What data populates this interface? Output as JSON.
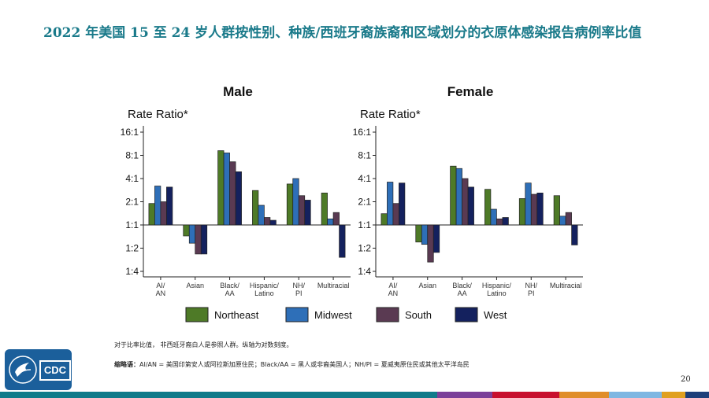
{
  "title": "2022 年美国 15 至 24 岁人群按性别、种族/西班牙裔族裔和区域划分的衣原体感染报告病例率比值",
  "chart_data": [
    {
      "type": "bar",
      "title": "Male",
      "ylabel": "Rate Ratio*",
      "y_scale": "log2",
      "yticks": [
        {
          "value": 16,
          "label": "16:1"
        },
        {
          "value": 8,
          "label": "8:1"
        },
        {
          "value": 4,
          "label": "4:1"
        },
        {
          "value": 2,
          "label": "2:1"
        },
        {
          "value": 1,
          "label": "1:1"
        },
        {
          "value": 0.5,
          "label": "1:2"
        },
        {
          "value": 0.25,
          "label": "1:4"
        }
      ],
      "ylim": [
        0.22,
        18
      ],
      "baseline": 1,
      "categories": [
        "AI/ AN",
        "Asian",
        "Black/ AA",
        "Hispanic/ Latino",
        "NH/ PI",
        "Multiracial"
      ],
      "series": [
        {
          "name": "Northeast",
          "color": "#4e7a27",
          "values": [
            1.9,
            0.72,
            9.2,
            2.8,
            3.4,
            2.6
          ]
        },
        {
          "name": "Midwest",
          "color": "#2e6fb8",
          "values": [
            3.2,
            0.58,
            8.6,
            1.8,
            4.0,
            1.2
          ]
        },
        {
          "name": "South",
          "color": "#5a3a52",
          "values": [
            2.0,
            0.42,
            6.6,
            1.25,
            2.4,
            1.45
          ]
        },
        {
          "name": "West",
          "color": "#14215e",
          "values": [
            3.1,
            0.42,
            4.9,
            1.15,
            2.1,
            0.38
          ]
        }
      ]
    },
    {
      "type": "bar",
      "title": "Female",
      "ylabel": "Rate Ratio*",
      "y_scale": "log2",
      "yticks": [
        {
          "value": 16,
          "label": "16:1"
        },
        {
          "value": 8,
          "label": "8:1"
        },
        {
          "value": 4,
          "label": "4:1"
        },
        {
          "value": 2,
          "label": "2:1"
        },
        {
          "value": 1,
          "label": "1:1"
        },
        {
          "value": 0.5,
          "label": "1:2"
        },
        {
          "value": 0.25,
          "label": "1:4"
        }
      ],
      "ylim": [
        0.22,
        18
      ],
      "baseline": 1,
      "categories": [
        "AI/ AN",
        "Asian",
        "Black/ AA",
        "Hispanic/ Latino",
        "NH/ PI",
        "Multiracial"
      ],
      "series": [
        {
          "name": "Northeast",
          "color": "#4e7a27",
          "values": [
            1.4,
            0.6,
            5.8,
            2.9,
            2.2,
            2.4
          ]
        },
        {
          "name": "Midwest",
          "color": "#2e6fb8",
          "values": [
            3.6,
            0.56,
            5.4,
            1.6,
            3.5,
            1.3
          ]
        },
        {
          "name": "South",
          "color": "#5a3a52",
          "values": [
            1.9,
            0.33,
            4.0,
            1.2,
            2.5,
            1.45
          ]
        },
        {
          "name": "West",
          "color": "#14215e",
          "values": [
            3.5,
            0.44,
            3.1,
            1.25,
            2.6,
            0.55
          ]
        }
      ]
    }
  ],
  "legend": [
    {
      "name": "Northeast",
      "color": "#4e7a27"
    },
    {
      "name": "Midwest",
      "color": "#2e6fb8"
    },
    {
      "name": "South",
      "color": "#5a3a52"
    },
    {
      "name": "West",
      "color": "#14215e"
    }
  ],
  "footnote": "对于比率比值， 非西班牙裔白人是参照人群。纵轴为对数刻度。",
  "abbrev_label": "缩略语：",
  "abbrev_text": "AI/AN = 美国印第安人或阿拉斯加原住民；Black/AA = 黑人或非裔美国人；NH/PI = 夏威夷原住民或其他太平洋岛民",
  "logo_text": "CDC",
  "page_number": "20",
  "footer_colors": [
    "#0f7b8a",
    "#7b3f99",
    "#c8102e",
    "#e08e2b",
    "#7fb7e2",
    "#e0a020",
    "#1d3f7a"
  ]
}
